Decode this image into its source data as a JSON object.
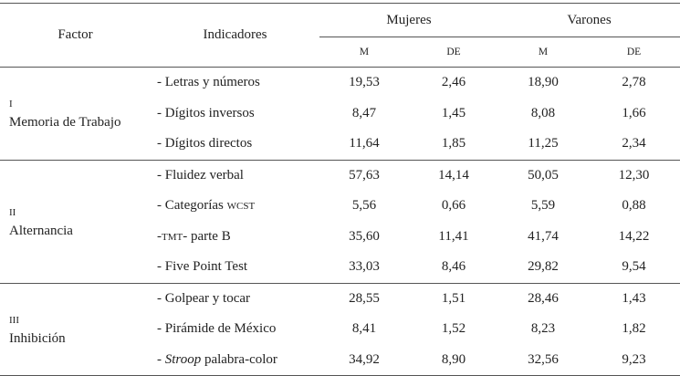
{
  "header": {
    "factor": "Factor",
    "indicadores": "Indicadores",
    "groups": [
      "Mujeres",
      "Varones"
    ],
    "stats": [
      "M",
      "DE",
      "M",
      "DE"
    ]
  },
  "groups": [
    {
      "numeral": "I",
      "factor": "Memoria de Trabajo",
      "rows": [
        {
          "indicator": [
            "- Letras y números"
          ],
          "values": [
            "19,53",
            "2,46",
            "18,90",
            "2,78"
          ]
        },
        {
          "indicator": [
            "- Dígitos inversos"
          ],
          "values": [
            "8,47",
            "1,45",
            "8,08",
            "1,66"
          ]
        },
        {
          "indicator": [
            "- Dígitos directos"
          ],
          "values": [
            "11,64",
            "1,85",
            "11,25",
            "2,34"
          ]
        }
      ]
    },
    {
      "numeral": "II",
      "factor": "Alternancia",
      "rows": [
        {
          "indicator": [
            "- Fluidez verbal"
          ],
          "values": [
            "57,63",
            "14,14",
            "50,05",
            "12,30"
          ]
        },
        {
          "indicator": [
            "- Categorías ",
            "WCST"
          ],
          "values": [
            "5,56",
            "0,66",
            "5,59",
            "0,88"
          ]
        },
        {
          "indicator": [
            "-",
            "TMT",
            "- parte B"
          ],
          "values": [
            "35,60",
            "11,41",
            "41,74",
            "14,22"
          ]
        },
        {
          "indicator": [
            "- Five Point Test"
          ],
          "values": [
            "33,03",
            "8,46",
            "29,82",
            "9,54"
          ]
        }
      ]
    },
    {
      "numeral": "III",
      "factor": "Inhibición",
      "rows": [
        {
          "indicator": [
            "- Golpear y tocar"
          ],
          "values": [
            "28,55",
            "1,51",
            "28,46",
            "1,43"
          ]
        },
        {
          "indicator": [
            "- Pirámide de México"
          ],
          "values": [
            "8,41",
            "1,52",
            "8,23",
            "1,82"
          ]
        },
        {
          "indicator": [
            "- ",
            "Stroop",
            " palabra-color"
          ],
          "values": [
            "34,92",
            "8,90",
            "32,56",
            "9,23"
          ]
        }
      ]
    }
  ]
}
